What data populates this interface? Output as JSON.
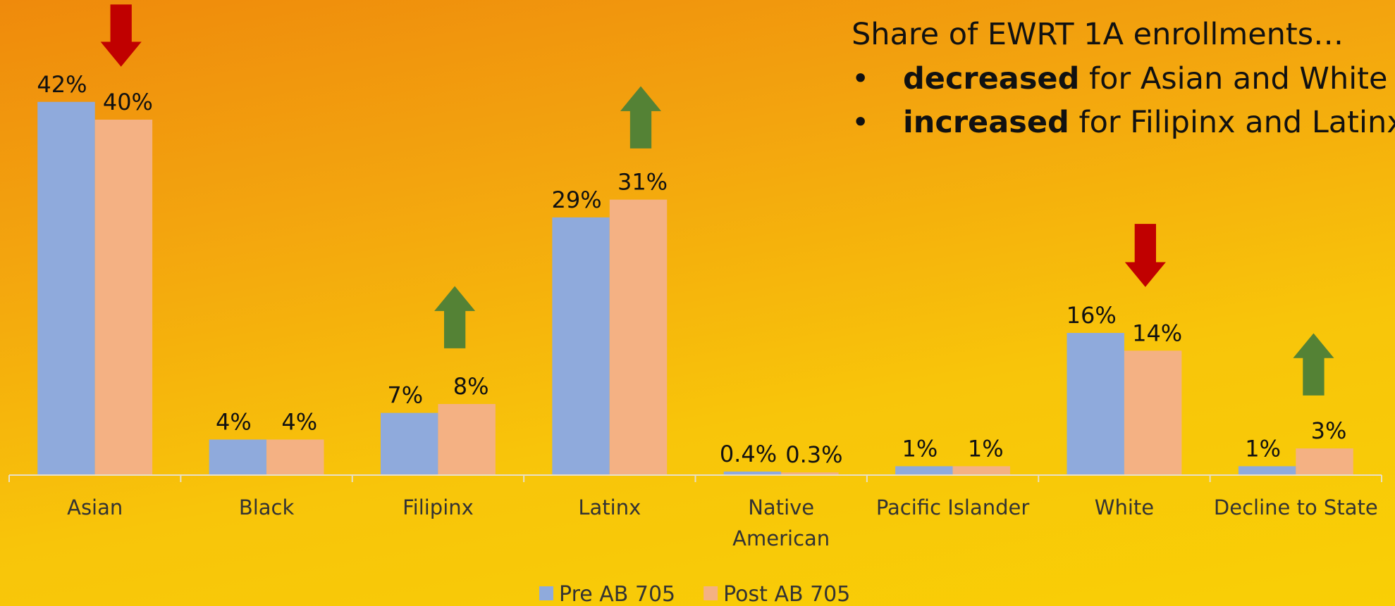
{
  "chart_data": {
    "type": "bar",
    "categories": [
      "Asian",
      "Black",
      "Filipinx",
      "Latinx",
      "Native American",
      "Pacific Islander",
      "White",
      "Decline to State"
    ],
    "series": [
      {
        "name": "Pre AB 705",
        "color": "#8faadc",
        "values": [
          42,
          4,
          7,
          29,
          0.4,
          1,
          16,
          1
        ],
        "value_labels": [
          "42%",
          "4%",
          "7%",
          "29%",
          "0.4%",
          "1%",
          "16%",
          "1%"
        ]
      },
      {
        "name": "Post AB 705",
        "color": "#f4b183",
        "values": [
          40,
          4,
          8,
          31,
          0.3,
          1,
          14,
          3
        ],
        "value_labels": [
          "40%",
          "4%",
          "8%",
          "31%",
          "0.3%",
          "1%",
          "14%",
          "3%"
        ]
      }
    ],
    "legend": "bottom",
    "annotation": {
      "heading": "Share of EWRT 1A enrollments…",
      "bullets": [
        {
          "marker": "•",
          "bold": "decreased",
          "text": "for Asian and White"
        },
        {
          "marker": "•",
          "bold": "increased",
          "text": "for Filipinx and Latinx"
        }
      ]
    }
  }
}
